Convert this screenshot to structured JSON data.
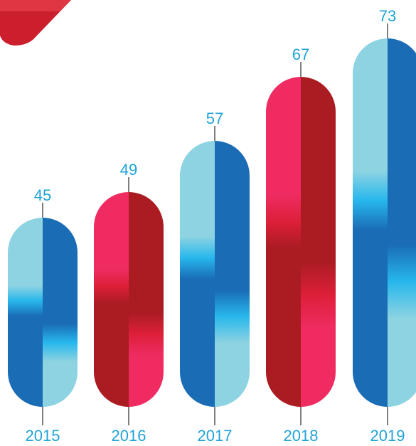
{
  "chart_data": {
    "type": "bar",
    "title": "",
    "xlabel": "",
    "ylabel": "",
    "categories": [
      "2015",
      "2016",
      "2017",
      "2018",
      "2019"
    ],
    "values": [
      45,
      49,
      57,
      67,
      73
    ],
    "value_labels": [
      "45",
      "49",
      "57",
      "67",
      "73"
    ],
    "grid": false,
    "legend": "none"
  },
  "colors": {
    "blue_light": "#8dd3e2",
    "blue_dark": "#1a6cb5",
    "blue_glow": "#27b7ec",
    "red_light": "#ef2b61",
    "red_dark": "#aa1c22",
    "red_glow": "#dd1f38",
    "label": "#1fa3d8",
    "leader": "#2b2b2b",
    "corner_logo": "#d5202f"
  },
  "bar_palettes": [
    "blue",
    "red",
    "blue",
    "red",
    "blue"
  ]
}
